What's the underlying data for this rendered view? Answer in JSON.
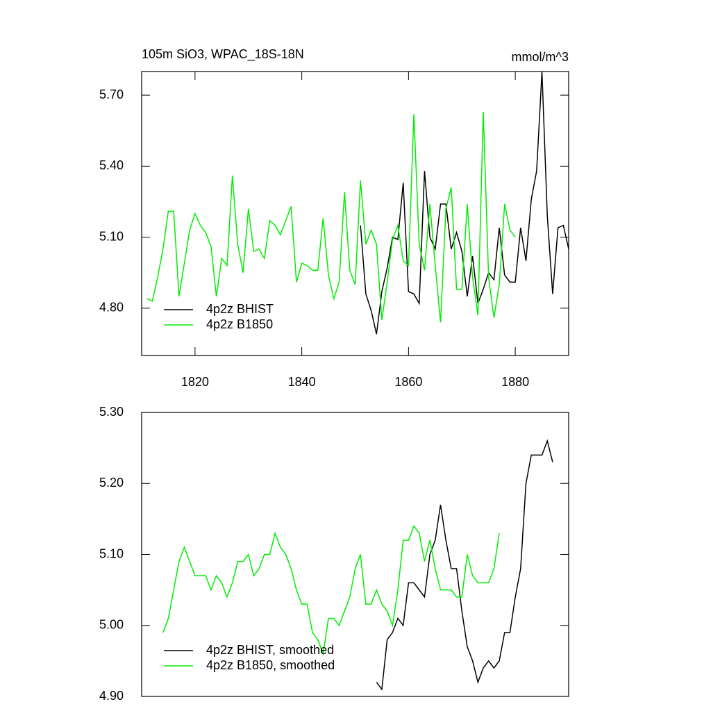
{
  "chart_data": [
    {
      "type": "line",
      "title": "105m SiO3, WPAC_18S-18N",
      "units": "mmol/m^3",
      "xlim": [
        1810,
        1890
      ],
      "xticks": [
        1820,
        1840,
        1860,
        1880
      ],
      "ylim": [
        4.6,
        5.8
      ],
      "yticks": [
        {
          "value": 5.7,
          "label": "5.70"
        },
        {
          "value": 5.4,
          "label": "5.40"
        },
        {
          "value": 5.1,
          "label": "5.10"
        },
        {
          "value": 4.8,
          "label": "4.80"
        }
      ],
      "legend": "lower left",
      "series": [
        {
          "name": "4p2z BHIST",
          "color": "#000000",
          "x": [
            1851,
            1852,
            1853,
            1854,
            1855,
            1856,
            1857,
            1858,
            1859,
            1860,
            1861,
            1862,
            1863,
            1864,
            1865,
            1866,
            1867,
            1868,
            1869,
            1870,
            1871,
            1872,
            1873,
            1874,
            1875,
            1876,
            1877,
            1878,
            1879,
            1880,
            1881,
            1882,
            1883,
            1884,
            1885,
            1886,
            1887,
            1888,
            1889,
            1890
          ],
          "values": [
            5.15,
            4.86,
            4.79,
            4.69,
            4.87,
            4.97,
            5.1,
            5.09,
            5.33,
            4.87,
            4.86,
            4.82,
            5.38,
            5.1,
            5.05,
            5.24,
            5.24,
            5.05,
            5.12,
            5.04,
            4.85,
            5.02,
            4.82,
            4.88,
            4.95,
            4.92,
            5.14,
            4.94,
            4.91,
            4.91,
            5.14,
            5.0,
            5.26,
            5.38,
            5.8,
            5.19,
            4.86,
            5.14,
            5.15,
            5.05
          ]
        },
        {
          "name": "4p2z B1850",
          "color": "#00ee00",
          "x": [
            1811,
            1812,
            1813,
            1814,
            1815,
            1816,
            1817,
            1818,
            1819,
            1820,
            1821,
            1822,
            1823,
            1824,
            1825,
            1826,
            1827,
            1828,
            1829,
            1830,
            1831,
            1832,
            1833,
            1834,
            1835,
            1836,
            1837,
            1838,
            1839,
            1840,
            1841,
            1842,
            1843,
            1844,
            1845,
            1846,
            1847,
            1848,
            1849,
            1850,
            1851,
            1852,
            1853,
            1854,
            1855,
            1856,
            1857,
            1858,
            1859,
            1860,
            1861,
            1862,
            1863,
            1864,
            1865,
            1866,
            1867,
            1868,
            1869,
            1870,
            1871,
            1872,
            1873,
            1874,
            1875,
            1876,
            1877,
            1878,
            1879,
            1880
          ],
          "values": [
            4.84,
            4.83,
            4.93,
            5.05,
            5.21,
            5.21,
            4.85,
            4.99,
            5.13,
            5.2,
            5.15,
            5.12,
            5.06,
            4.85,
            5.01,
            4.98,
            5.36,
            5.07,
            4.95,
            5.22,
            5.04,
            5.05,
            5.01,
            5.17,
            5.15,
            5.11,
            5.17,
            5.23,
            4.91,
            4.99,
            4.98,
            4.96,
            4.96,
            5.18,
            4.94,
            4.84,
            4.91,
            5.29,
            4.96,
            4.9,
            5.34,
            5.07,
            5.13,
            5.07,
            4.75,
            4.91,
            5.09,
            5.15,
            5.0,
            4.98,
            5.62,
            5.07,
            4.96,
            5.24,
            4.98,
            4.74,
            5.22,
            5.31,
            4.88,
            4.88,
            5.24,
            4.93,
            4.77,
            5.63,
            4.93,
            4.76,
            4.9,
            5.24,
            5.13,
            5.1
          ]
        }
      ]
    },
    {
      "type": "line",
      "xlim": [
        1810,
        1890
      ],
      "ylim": [
        4.9,
        5.3
      ],
      "yticks": [
        {
          "value": 5.3,
          "label": "5.30"
        },
        {
          "value": 5.2,
          "label": "5.20"
        },
        {
          "value": 5.1,
          "label": "5.10"
        },
        {
          "value": 5.0,
          "label": "5.00"
        },
        {
          "value": 4.9,
          "label": "4.90"
        }
      ],
      "legend": "lower left",
      "series": [
        {
          "name": "4p2z BHIST, smoothed",
          "color": "#000000",
          "x": [
            1854,
            1855,
            1856,
            1857,
            1858,
            1859,
            1860,
            1861,
            1862,
            1863,
            1864,
            1865,
            1866,
            1867,
            1868,
            1869,
            1870,
            1871,
            1872,
            1873,
            1874,
            1875,
            1876,
            1877,
            1878,
            1879,
            1880,
            1881,
            1882,
            1883,
            1884,
            1885,
            1886,
            1887
          ],
          "values": [
            4.92,
            4.91,
            4.98,
            4.99,
            5.01,
            5.0,
            5.06,
            5.06,
            5.05,
            5.04,
            5.1,
            5.12,
            5.17,
            5.12,
            5.08,
            5.08,
            5.02,
            4.97,
            4.95,
            4.92,
            4.94,
            4.95,
            4.94,
            4.95,
            4.99,
            4.99,
            5.04,
            5.08,
            5.2,
            5.24,
            5.24,
            5.24,
            5.26,
            5.23
          ]
        },
        {
          "name": "4p2z B1850, smoothed",
          "color": "#00ee00",
          "x": [
            1814,
            1815,
            1816,
            1817,
            1818,
            1819,
            1820,
            1821,
            1822,
            1823,
            1824,
            1825,
            1826,
            1827,
            1828,
            1829,
            1830,
            1831,
            1832,
            1833,
            1834,
            1835,
            1836,
            1837,
            1838,
            1839,
            1840,
            1841,
            1842,
            1843,
            1844,
            1845,
            1846,
            1847,
            1848,
            1849,
            1850,
            1851,
            1852,
            1853,
            1854,
            1855,
            1856,
            1857,
            1858,
            1859,
            1860,
            1861,
            1862,
            1863,
            1864,
            1865,
            1866,
            1867,
            1868,
            1869,
            1870,
            1871,
            1872,
            1873,
            1874,
            1875,
            1876,
            1877
          ],
          "values": [
            4.99,
            5.01,
            5.05,
            5.09,
            5.11,
            5.09,
            5.07,
            5.07,
            5.07,
            5.05,
            5.07,
            5.06,
            5.04,
            5.06,
            5.09,
            5.09,
            5.1,
            5.07,
            5.08,
            5.1,
            5.1,
            5.13,
            5.11,
            5.1,
            5.08,
            5.05,
            5.03,
            5.03,
            4.99,
            4.98,
            4.96,
            5.01,
            5.01,
            5.0,
            5.02,
            5.04,
            5.08,
            5.1,
            5.03,
            5.03,
            5.05,
            5.03,
            5.02,
            5.0,
            5.05,
            5.12,
            5.12,
            5.14,
            5.13,
            5.09,
            5.12,
            5.08,
            5.05,
            5.05,
            5.05,
            5.04,
            5.04,
            5.1,
            5.07,
            5.06,
            5.06,
            5.06,
            5.08,
            5.13
          ]
        }
      ]
    }
  ]
}
